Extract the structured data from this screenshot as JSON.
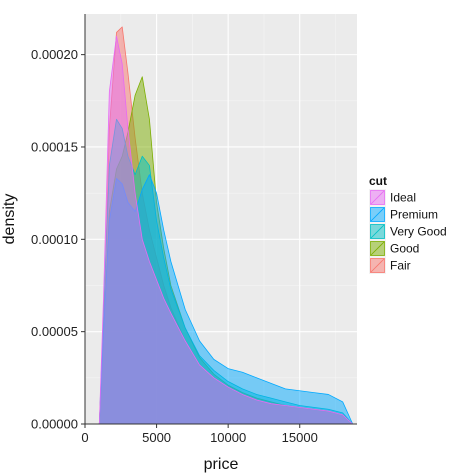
{
  "chart_data": {
    "type": "area",
    "subtype": "density",
    "xlabel": "price",
    "ylabel": "density",
    "xlim": [
      0,
      19000
    ],
    "ylim": [
      0,
      0.000222
    ],
    "x_ticks": [
      0,
      5000,
      10000,
      15000
    ],
    "x_tick_labels": [
      "0",
      "5000",
      "10000",
      "15000"
    ],
    "y_ticks": [
      0,
      5e-05,
      0.0001,
      0.00015,
      0.0002
    ],
    "y_tick_labels": [
      "0.00000",
      "0.00005",
      "0.00010",
      "0.00015",
      "0.00020"
    ],
    "grid": true,
    "legend_title": "cut",
    "legend_position": "right",
    "fill_opacity": 0.5,
    "series": [
      {
        "name": "Fair",
        "color": "#F8766D",
        "x": [
          1000,
          1300,
          1700,
          2200,
          2600,
          3000,
          3500,
          4000,
          4500,
          5000,
          5500,
          6000,
          7000,
          8000,
          9000,
          10000,
          11000,
          12000,
          13000,
          14000,
          15000,
          16000,
          17000,
          18000,
          18700
        ],
        "y": [
          0,
          5e-05,
          0.00016,
          0.000212,
          0.000215,
          0.00019,
          0.000155,
          0.000125,
          0.000105,
          9e-05,
          7.5e-05,
          6.3e-05,
          4.5e-05,
          3.2e-05,
          2.5e-05,
          2e-05,
          1.6e-05,
          1.3e-05,
          1.1e-05,
          1e-05,
          9e-06,
          8e-06,
          7e-06,
          5e-06,
          0
        ]
      },
      {
        "name": "Good",
        "color": "#7CAE00",
        "x": [
          1000,
          1300,
          1700,
          2200,
          2600,
          3000,
          3500,
          4000,
          4500,
          5000,
          5500,
          6000,
          7000,
          8000,
          9000,
          10000,
          11000,
          12000,
          13000,
          14000,
          15000,
          16000,
          17000,
          18000,
          18700
        ],
        "y": [
          0,
          5e-05,
          0.000115,
          0.000138,
          0.000145,
          0.000158,
          0.000178,
          0.000188,
          0.000165,
          0.00012,
          9.5e-05,
          7.5e-05,
          5.2e-05,
          3.6e-05,
          2.7e-05,
          2.1e-05,
          1.7e-05,
          1.4e-05,
          1.2e-05,
          1e-05,
          9e-06,
          8e-06,
          7e-06,
          5e-06,
          0
        ]
      },
      {
        "name": "Very Good",
        "color": "#00BFC4",
        "x": [
          1000,
          1300,
          1700,
          2200,
          2600,
          3000,
          3500,
          4000,
          4500,
          5000,
          5500,
          6000,
          7000,
          8000,
          9000,
          10000,
          11000,
          12000,
          13000,
          14000,
          15000,
          16000,
          17000,
          18000,
          18700
        ],
        "y": [
          0,
          6e-05,
          0.00014,
          0.000165,
          0.00016,
          0.000145,
          0.000135,
          0.000145,
          0.00014,
          0.00011,
          9e-05,
          7.3e-05,
          5.2e-05,
          3.7e-05,
          2.9e-05,
          2.3e-05,
          1.9e-05,
          1.6e-05,
          1.4e-05,
          1.2e-05,
          1e-05,
          9e-06,
          8e-06,
          6e-06,
          0
        ]
      },
      {
        "name": "Premium",
        "color": "#00A9FF",
        "x": [
          1000,
          1300,
          1700,
          2200,
          2600,
          3000,
          3500,
          4000,
          4500,
          5000,
          5500,
          6000,
          7000,
          8000,
          9000,
          10000,
          11000,
          12000,
          13000,
          14000,
          15000,
          16000,
          17000,
          18000,
          18700
        ],
        "y": [
          0,
          5e-05,
          0.00011,
          0.000133,
          0.00013,
          0.00012,
          0.000115,
          0.000127,
          0.000135,
          0.000125,
          0.000105,
          8.8e-05,
          6.2e-05,
          4.5e-05,
          3.5e-05,
          3e-05,
          2.8e-05,
          2.5e-05,
          2.2e-05,
          1.9e-05,
          1.8e-05,
          1.7e-05,
          1.6e-05,
          1.2e-05,
          0
        ]
      },
      {
        "name": "Ideal",
        "color": "#E76BF3",
        "x": [
          1000,
          1300,
          1700,
          2200,
          2600,
          3000,
          3500,
          4000,
          4500,
          5000,
          5500,
          6000,
          7000,
          8000,
          9000,
          10000,
          11000,
          12000,
          13000,
          14000,
          15000,
          16000,
          17000,
          18000,
          18700
        ],
        "y": [
          0,
          7e-05,
          0.00018,
          0.00021,
          0.000195,
          0.00016,
          0.000125,
          0.0001,
          8.8e-05,
          7.8e-05,
          6.8e-05,
          6e-05,
          4.5e-05,
          3.2e-05,
          2.5e-05,
          2e-05,
          1.6e-05,
          1.3e-05,
          1.1e-05,
          1e-05,
          9e-06,
          8e-06,
          7e-06,
          5e-06,
          0
        ]
      }
    ],
    "legend_order": [
      "Ideal",
      "Premium",
      "Very Good",
      "Good",
      "Fair"
    ]
  }
}
